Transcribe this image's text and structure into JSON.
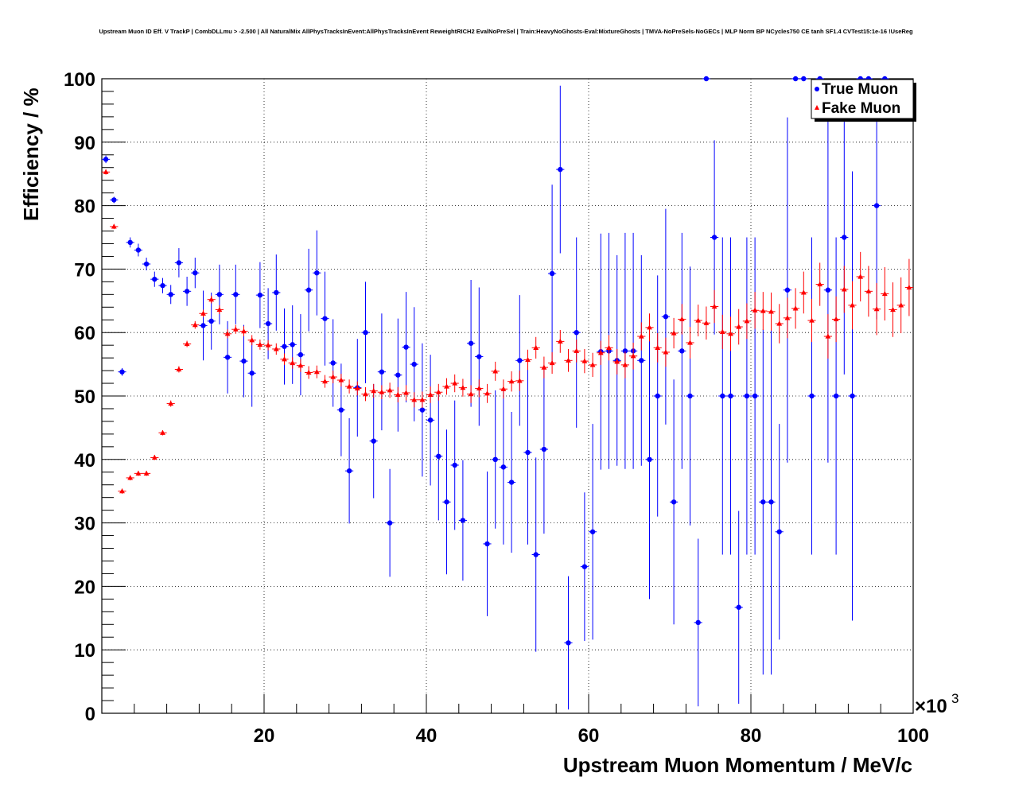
{
  "chart_data": {
    "type": "scatter",
    "title": "Upstream Muon ID Eff. V TrackP | CombDLLmu > -2.500 | All NaturalMix AllPhysTracksInEvent:AllPhysTracksInEvent ReweightRICH2 EvalNoPreSel | Train:HeavyNoGhosts-Eval:MixtureGhosts | TMVA-NoPreSels-NoGECs | MLP Norm BP NCycles750 CE tanh SF1.4 CVTest15:1e-16 !UseReg",
    "xlabel": "Upstream Muon Momentum / MeV/c",
    "ylabel": "Efficiency / %",
    "x_multiplier_label": "×10",
    "x_multiplier_exp": "3",
    "xlim": [
      0,
      100000
    ],
    "ylim": [
      0,
      100
    ],
    "x_ticks": [
      20000,
      40000,
      60000,
      80000,
      100000
    ],
    "x_tick_labels": [
      "20",
      "40",
      "60",
      "80",
      "100"
    ],
    "y_ticks": [
      0,
      10,
      20,
      30,
      40,
      50,
      60,
      70,
      80,
      90,
      100
    ],
    "y_tick_labels": [
      "0",
      "10",
      "20",
      "30",
      "40",
      "50",
      "60",
      "70",
      "80",
      "90",
      "100"
    ],
    "grid": true,
    "legend_position": "top-right",
    "series": [
      {
        "name": "True Muon",
        "color": "#0000ff",
        "marker": "circle",
        "points": [
          [
            500,
            87.3,
            0.6
          ],
          [
            1500,
            80.9,
            0.5
          ],
          [
            2500,
            53.8,
            0.6
          ],
          [
            3500,
            74.2,
            0.8
          ],
          [
            4500,
            73,
            1
          ],
          [
            5500,
            70.8,
            1
          ],
          [
            6500,
            68.4,
            1.2
          ],
          [
            7500,
            67.4,
            1.2
          ],
          [
            8500,
            66,
            1.5
          ],
          [
            9500,
            71,
            2.3
          ],
          [
            10500,
            66.5,
            2.3
          ],
          [
            11500,
            69.4,
            2.4
          ],
          [
            12500,
            61.1,
            5.5
          ],
          [
            13500,
            61.8,
            4.5
          ],
          [
            14500,
            66,
            4.7
          ],
          [
            15500,
            56.1,
            5.7
          ],
          [
            16500,
            66,
            4.7
          ],
          [
            17500,
            55.5,
            5.7
          ],
          [
            18500,
            53.6,
            5.3
          ],
          [
            19500,
            65.9,
            5.2
          ],
          [
            20500,
            61.4,
            5.6
          ],
          [
            21500,
            66.3,
            6
          ],
          [
            22500,
            57.8,
            6
          ],
          [
            23500,
            58.1,
            6.2
          ],
          [
            24500,
            56.5,
            6.4
          ],
          [
            25500,
            66.7,
            6.5
          ],
          [
            26500,
            69.4,
            6.7
          ],
          [
            27500,
            62.2,
            7.4
          ],
          [
            28500,
            55.2,
            6.9
          ],
          [
            29500,
            47.8,
            7.3
          ],
          [
            30500,
            38.2,
            8.3
          ],
          [
            31500,
            51.3,
            7.7
          ],
          [
            32500,
            60,
            8
          ],
          [
            33500,
            42.9,
            9
          ],
          [
            34500,
            53.8,
            9.2
          ],
          [
            35500,
            30,
            8.5
          ],
          [
            36500,
            53.3,
            8.9
          ],
          [
            37500,
            57.7,
            8.7
          ],
          [
            38500,
            55,
            9
          ],
          [
            39500,
            47.8,
            10.5
          ],
          [
            40500,
            46.2,
            10.3
          ],
          [
            41500,
            40.5,
            10.1
          ],
          [
            42500,
            33.3,
            11.4
          ],
          [
            43500,
            39.1,
            10.2
          ],
          [
            44500,
            30.4,
            9.5
          ],
          [
            45500,
            58.3,
            10
          ],
          [
            46500,
            56.2,
            10.9
          ],
          [
            47500,
            26.7,
            11.4
          ],
          [
            48500,
            40,
            10.9
          ],
          [
            49500,
            38.8,
            12.2
          ],
          [
            50500,
            36.4,
            11.1
          ],
          [
            51500,
            55.6,
            10.3
          ],
          [
            52500,
            41.1,
            14.5
          ],
          [
            53500,
            25,
            15.3
          ],
          [
            54500,
            41.6,
            13.3
          ],
          [
            55500,
            69.3,
            14
          ],
          [
            56500,
            85.7,
            13.2
          ],
          [
            57500,
            11.1,
            10.5
          ],
          [
            58500,
            60,
            15
          ],
          [
            59500,
            23.1,
            11.7
          ],
          [
            60500,
            28.6,
            17
          ],
          [
            61500,
            57,
            18.6
          ],
          [
            62500,
            57.1,
            18.6
          ],
          [
            63500,
            55.6,
            16.6
          ],
          [
            64500,
            57.1,
            18.6
          ],
          [
            65500,
            57.1,
            18.6
          ],
          [
            66500,
            55.6,
            16.6
          ],
          [
            67500,
            40,
            22
          ],
          [
            68500,
            50,
            19
          ],
          [
            69500,
            62.5,
            17
          ],
          [
            70500,
            33.3,
            19.3
          ],
          [
            71500,
            57.1,
            18.6
          ],
          [
            72500,
            50,
            20.4
          ],
          [
            73500,
            14.3,
            13.2
          ],
          [
            74500,
            100,
            0
          ],
          [
            75500,
            75,
            15.3
          ],
          [
            76500,
            50,
            25
          ],
          [
            77500,
            50,
            25
          ],
          [
            78500,
            16.7,
            15.2
          ],
          [
            79500,
            50,
            25
          ],
          [
            80500,
            50,
            25
          ],
          [
            81500,
            33.3,
            27.2
          ],
          [
            82500,
            33.3,
            27.2
          ],
          [
            83500,
            28.6,
            17
          ],
          [
            84500,
            66.7,
            27.2
          ],
          [
            85500,
            100,
            0
          ],
          [
            86500,
            100,
            0
          ],
          [
            87500,
            50,
            25
          ],
          [
            88500,
            100,
            0
          ],
          [
            89500,
            66.7,
            27.2
          ],
          [
            90500,
            50,
            25
          ],
          [
            91500,
            75,
            21.6
          ],
          [
            92500,
            50,
            35.4
          ],
          [
            93500,
            100,
            0
          ],
          [
            94500,
            100,
            0
          ],
          [
            95500,
            80,
            17.9
          ],
          [
            96500,
            100,
            0
          ]
        ]
      },
      {
        "name": "Fake Muon",
        "color": "#ff0000",
        "marker": "triangle",
        "points": [
          [
            500,
            85.3,
            0.4
          ],
          [
            1500,
            76.7,
            0.4
          ],
          [
            2500,
            35,
            0.4
          ],
          [
            3500,
            37.1,
            0.4
          ],
          [
            4500,
            37.8,
            0.4
          ],
          [
            5500,
            37.8,
            0.4
          ],
          [
            6500,
            40.3,
            0.4
          ],
          [
            7500,
            44.2,
            0.4
          ],
          [
            8500,
            48.8,
            0.5
          ],
          [
            9500,
            54.2,
            0.5
          ],
          [
            10500,
            58.2,
            0.5
          ],
          [
            11500,
            61.2,
            0.6
          ],
          [
            12500,
            63,
            0.6
          ],
          [
            13500,
            65.2,
            0.6
          ],
          [
            14500,
            63.6,
            0.7
          ],
          [
            15500,
            59.8,
            0.7
          ],
          [
            16500,
            60.5,
            0.7
          ],
          [
            17500,
            60.2,
            0.8
          ],
          [
            18500,
            58.8,
            0.8
          ],
          [
            19500,
            58.1,
            0.8
          ],
          [
            20500,
            58,
            0.8
          ],
          [
            21500,
            57.4,
            0.9
          ],
          [
            22500,
            55.8,
            0.9
          ],
          [
            23500,
            55.2,
            0.9
          ],
          [
            24500,
            54.8,
            1
          ],
          [
            25500,
            53.7,
            1
          ],
          [
            26500,
            53.8,
            1
          ],
          [
            27500,
            52.3,
            1
          ],
          [
            28500,
            53,
            1
          ],
          [
            29500,
            52.5,
            1
          ],
          [
            30500,
            51.5,
            1.1
          ],
          [
            31500,
            51.2,
            1.1
          ],
          [
            32500,
            50.3,
            1.1
          ],
          [
            33500,
            50.8,
            1.1
          ],
          [
            34500,
            50.6,
            1.1
          ],
          [
            35500,
            50.9,
            1.2
          ],
          [
            36500,
            50.2,
            1.2
          ],
          [
            37500,
            50.5,
            1.2
          ],
          [
            38500,
            49.4,
            1.2
          ],
          [
            39500,
            49.4,
            1.3
          ],
          [
            40500,
            50.2,
            1.3
          ],
          [
            41500,
            50.6,
            1.3
          ],
          [
            42500,
            51.5,
            1.3
          ],
          [
            43500,
            52,
            1.4
          ],
          [
            44500,
            51.3,
            1.4
          ],
          [
            45500,
            50.3,
            1.4
          ],
          [
            46500,
            51.2,
            1.4
          ],
          [
            47500,
            50.4,
            1.5
          ],
          [
            48500,
            53.9,
            1.5
          ],
          [
            49500,
            51.1,
            1.5
          ],
          [
            50500,
            52.3,
            1.6
          ],
          [
            51500,
            52.4,
            1.6
          ],
          [
            52500,
            55.7,
            1.6
          ],
          [
            53500,
            57.6,
            1.7
          ],
          [
            54500,
            54.5,
            1.7
          ],
          [
            55500,
            55.2,
            1.7
          ],
          [
            56500,
            58.6,
            1.8
          ],
          [
            57500,
            55.6,
            1.8
          ],
          [
            58500,
            57.1,
            1.8
          ],
          [
            59500,
            55.5,
            1.9
          ],
          [
            60500,
            54.9,
            1.9
          ],
          [
            61500,
            56.8,
            1.9
          ],
          [
            62500,
            57.6,
            2
          ],
          [
            63500,
            55.4,
            2
          ],
          [
            64500,
            54.9,
            2.1
          ],
          [
            65500,
            56.3,
            2.1
          ],
          [
            66500,
            59.4,
            2.2
          ],
          [
            67500,
            60.8,
            2.2
          ],
          [
            68500,
            57.6,
            2.3
          ],
          [
            69500,
            56.9,
            2.3
          ],
          [
            70500,
            59.9,
            2.4
          ],
          [
            71500,
            62.1,
            2.4
          ],
          [
            72500,
            58.4,
            2.5
          ],
          [
            73500,
            61.9,
            2.5
          ],
          [
            74500,
            61.5,
            2.6
          ],
          [
            75500,
            64.1,
            2.6
          ],
          [
            76500,
            60.1,
            2.7
          ],
          [
            77500,
            59.8,
            2.7
          ],
          [
            78500,
            60.9,
            2.8
          ],
          [
            79500,
            61.8,
            2.8
          ],
          [
            80500,
            63.5,
            2.9
          ],
          [
            81500,
            63.4,
            3
          ],
          [
            82500,
            63.3,
            3
          ],
          [
            83500,
            61.4,
            3.1
          ],
          [
            84500,
            62.3,
            3.2
          ],
          [
            85500,
            63.8,
            3.2
          ],
          [
            86500,
            66.3,
            3.3
          ],
          [
            87500,
            61.9,
            3.4
          ],
          [
            88500,
            67.6,
            3.4
          ],
          [
            89500,
            59.4,
            3.5
          ],
          [
            90500,
            62.1,
            3.6
          ],
          [
            91500,
            66.8,
            3.7
          ],
          [
            92500,
            64.3,
            3.8
          ],
          [
            93500,
            68.8,
            3.9
          ],
          [
            94500,
            66.5,
            4
          ],
          [
            95500,
            63.7,
            4.1
          ],
          [
            96500,
            66.1,
            4.2
          ],
          [
            97500,
            63.6,
            4.3
          ],
          [
            98500,
            64.3,
            4.4
          ],
          [
            99500,
            67.1,
            4.5
          ]
        ]
      }
    ]
  }
}
